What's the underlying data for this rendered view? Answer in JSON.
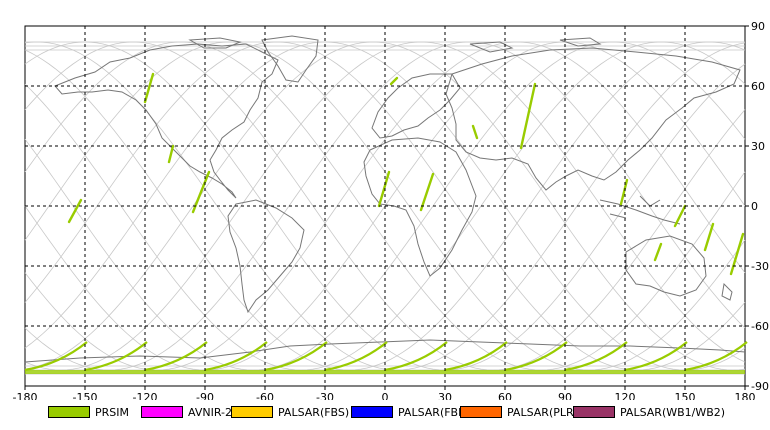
{
  "map": {
    "x_ticks": [
      "-180",
      "-150",
      "-120",
      "-90",
      "-60",
      "-30",
      "0",
      "30",
      "60",
      "90",
      "120",
      "150",
      "180"
    ],
    "y_ticks": [
      "90",
      "60",
      "30",
      "0",
      "-30",
      "-60",
      "-90"
    ],
    "colors": {
      "background": "#ffffff",
      "frame": "#000000",
      "grid": "#000000",
      "coastline": "#777777",
      "orbit_track": "#c8c8c8",
      "observation": "#99cc00"
    }
  },
  "legend": {
    "items": [
      {
        "label": "PRSIM",
        "color": "#99cc00"
      },
      {
        "label": "AVNIR-2",
        "color": "#ff00ff"
      },
      {
        "label": "PALSAR(FBS)",
        "color": "#ffcc00"
      },
      {
        "label": "PALSAR(FBD)",
        "color": "#0000ff"
      },
      {
        "label": "PALSAR(PLR)",
        "color": "#ff6600"
      },
      {
        "label": "PALSAR(WB1/WB2)",
        "color": "#993366"
      }
    ]
  }
}
